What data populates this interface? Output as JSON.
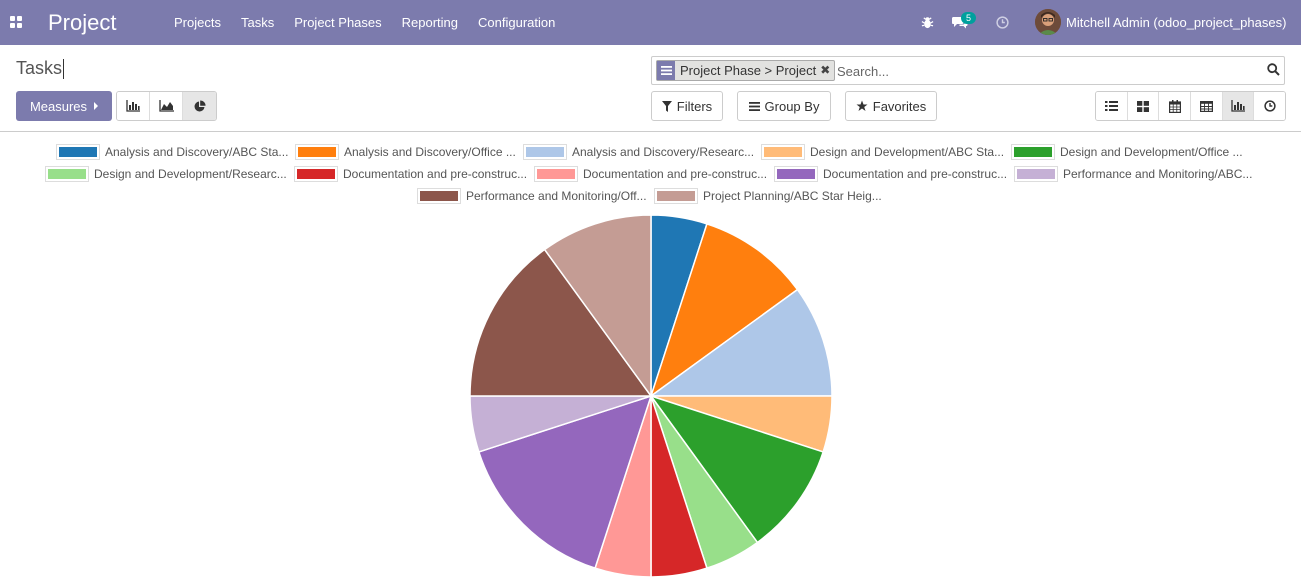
{
  "navbar": {
    "brand": "Project",
    "menu": [
      "Projects",
      "Tasks",
      "Project Phases",
      "Reporting",
      "Configuration"
    ],
    "messages_count": "5",
    "user": "Mitchell Admin (odoo_project_phases)"
  },
  "control_panel": {
    "title": "Tasks",
    "measures_label": "Measures",
    "search": {
      "facet": "Project Phase > Project",
      "placeholder": "Search..."
    },
    "filters_label": "Filters",
    "group_by_label": "Group By",
    "favorites_label": "Favorites",
    "chart_modes": [
      "bar-chart-icon",
      "line-chart-icon",
      "pie-chart-icon"
    ],
    "active_chart_mode": "pie",
    "views": [
      "list-view-icon",
      "kanban-view-icon",
      "calendar-view-icon",
      "pivot-view-icon",
      "graph-view-icon",
      "activity-view-icon"
    ],
    "active_view": "graph",
    "accent_color": "#7c7bad"
  },
  "chart_data": {
    "type": "pie",
    "legend_position": "top",
    "categories": [
      "Analysis and Discovery/ABC Sta...",
      "Analysis and Discovery/Office ...",
      "Analysis and Discovery/Researc...",
      "Design and Development/ABC Sta...",
      "Design and Development/Office ...",
      "Design and Development/Researc...",
      "Documentation and pre-construc...",
      "Documentation and pre-construc...",
      "Documentation and pre-construc...",
      "Performance and Monitoring/ABC...",
      "Performance and Monitoring/Off...",
      "Project Planning/ABC Star Heig..."
    ],
    "values": [
      1,
      2,
      2,
      1,
      2,
      1,
      1,
      1,
      3,
      1,
      3,
      2
    ],
    "colors": [
      "#1f77b4",
      "#ff7f0e",
      "#aec7e8",
      "#ffbb78",
      "#2ca02c",
      "#98df8a",
      "#d62728",
      "#ff9896",
      "#9467bd",
      "#c5b0d5",
      "#8c564b",
      "#c49c94"
    ]
  }
}
